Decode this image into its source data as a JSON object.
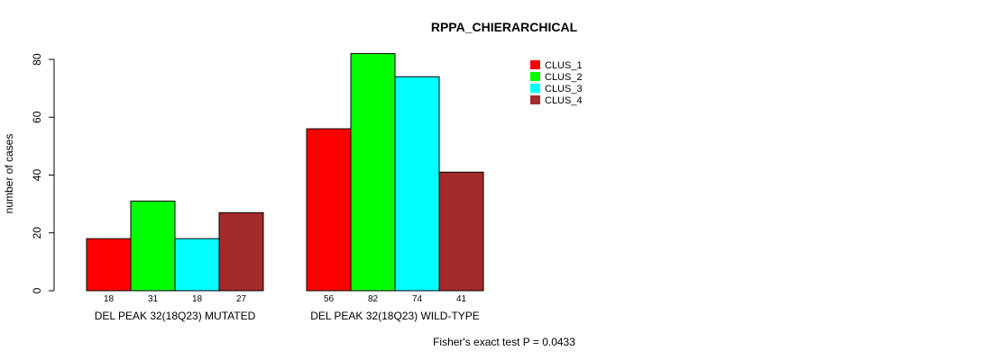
{
  "chart_data": {
    "type": "bar",
    "title": "RPPA_CHIERARCHICAL",
    "ylabel": "number of cases",
    "xlabel": "",
    "ylim": [
      0,
      80
    ],
    "yticks": [
      0,
      20,
      40,
      60,
      80
    ],
    "categories": [
      "DEL PEAK 32(18Q23) MUTATED",
      "DEL PEAK 32(18Q23) WILD-TYPE"
    ],
    "series": [
      {
        "name": "CLUS_1",
        "color": "#ff0000",
        "values": [
          18,
          56
        ]
      },
      {
        "name": "CLUS_2",
        "color": "#00ff00",
        "values": [
          31,
          82
        ]
      },
      {
        "name": "CLUS_3",
        "color": "#00ffff",
        "values": [
          18,
          74
        ]
      },
      {
        "name": "CLUS_4",
        "color": "#a52a2a",
        "values": [
          27,
          41
        ]
      }
    ],
    "legend_position": "top-right",
    "grid": false,
    "annotation": "Fisher's exact test P = 0.0433"
  }
}
